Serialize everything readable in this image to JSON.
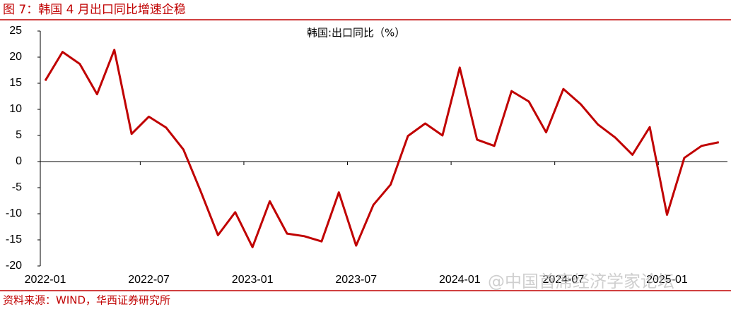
{
  "header": {
    "title": "图 7：韩国 4 月出口同比增速企稳"
  },
  "chart_data": {
    "type": "line",
    "categories": [
      "2022-01",
      null,
      null,
      null,
      null,
      null,
      "2022-07",
      null,
      null,
      null,
      null,
      null,
      "2023-01",
      null,
      null,
      null,
      null,
      null,
      "2023-07",
      null,
      null,
      null,
      null,
      null,
      "2024-01",
      null,
      null,
      null,
      null,
      null,
      "2024-07",
      null,
      null,
      null,
      null,
      null,
      "2025-01",
      null,
      null,
      null
    ],
    "series": [
      {
        "name": "韩国:出口同比（%）",
        "color": "#c00000",
        "values": [
          15.5,
          21,
          18.7,
          12.9,
          21.4,
          5.3,
          8.6,
          6.5,
          2.3,
          -5.7,
          -14.1,
          -9.7,
          -16.4,
          -7.6,
          -13.8,
          -14.3,
          -15.3,
          -5.9,
          -16.1,
          -8.3,
          -4.4,
          4.9,
          7.3,
          5.0,
          18.0,
          4.2,
          3.0,
          13.5,
          11.5,
          5.6,
          13.9,
          11.0,
          7.1,
          4.6,
          1.3,
          6.6,
          -10.2,
          0.7,
          3.0,
          3.7
        ]
      }
    ],
    "ylim": [
      -20,
      25
    ],
    "yticks": [
      -20,
      -15,
      -10,
      -5,
      0,
      5,
      10,
      15,
      20,
      25
    ],
    "annotations": [
      "@中国首席经济学家论坛"
    ]
  },
  "footer": {
    "source": "资料来源：WIND，华西证券研究所"
  }
}
